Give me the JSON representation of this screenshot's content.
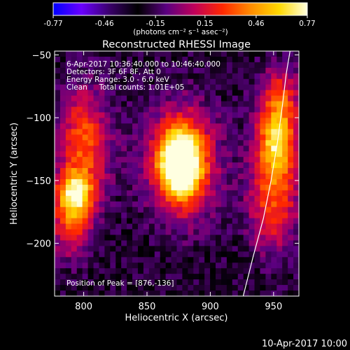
{
  "colorbar": {
    "ticks": [
      "-0.77",
      "-0.46",
      "-0.15",
      "0.15",
      "0.46",
      "0.77"
    ],
    "tick_values": [
      -0.77,
      -0.46,
      -0.15,
      0.15,
      0.46,
      0.77
    ],
    "unit_label": "(photons cm⁻² s⁻¹ asec⁻²)",
    "colors": [
      "#0000ff",
      "#6a00ff",
      "#3a006a",
      "#000000",
      "#5a0080",
      "#c0005a",
      "#ff2800",
      "#ff8c00",
      "#ffd800",
      "#ffffe0"
    ]
  },
  "chart_data": {
    "type": "heatmap",
    "title": "Reconstructed RHESSI Image",
    "xlabel": "Heliocentric X (arcsec)",
    "ylabel": "Heliocentric Y (arcsec)",
    "xlim": [
      777,
      970
    ],
    "ylim": [
      -242,
      -47
    ],
    "xticks": [
      800,
      850,
      900,
      950
    ],
    "yticks": [
      -50,
      -100,
      -150,
      -200
    ],
    "vrange": [
      -0.77,
      0.77
    ],
    "background_value": -0.2,
    "sources": [
      {
        "x": 876,
        "y": -136,
        "value": 0.77,
        "sx": 10,
        "sy": 16
      },
      {
        "x": 878,
        "y": -136,
        "value": 0.5,
        "sx": 18,
        "sy": 30
      },
      {
        "x": 793,
        "y": -160,
        "value": 0.5,
        "sx": 10,
        "sy": 12
      },
      {
        "x": 800,
        "y": -120,
        "value": 0.32,
        "sx": 14,
        "sy": 30
      },
      {
        "x": 790,
        "y": -185,
        "value": 0.25,
        "sx": 12,
        "sy": 18
      },
      {
        "x": 952,
        "y": -120,
        "value": 0.5,
        "sx": 10,
        "sy": 18
      },
      {
        "x": 950,
        "y": -165,
        "value": 0.3,
        "sx": 14,
        "sy": 28
      },
      {
        "x": 955,
        "y": -85,
        "value": 0.25,
        "sx": 12,
        "sy": 18
      },
      {
        "x": 915,
        "y": -125,
        "value": -0.18,
        "sx": 12,
        "sy": 30
      },
      {
        "x": 838,
        "y": -125,
        "value": -0.16,
        "sx": 12,
        "sy": 30
      }
    ],
    "limb": {
      "x": [
        926,
        934,
        942,
        948,
        953,
        957,
        960,
        963
      ],
      "y": [
        -242,
        -210,
        -180,
        -150,
        -120,
        -90,
        -65,
        -47
      ]
    },
    "annotations": [
      "6-Apr-2017 10:36:40.000 to 10:46:40.000",
      "Detectors: 3F 6F 8F, Att 0",
      "Energy Range: 3.0 - 6.0 keV",
      "Clean     Total counts: 1.01E+05"
    ],
    "peak_label": "Position of Peak = [876,-136]",
    "peak": [
      876,
      -136
    ]
  },
  "footer": {
    "timestamp": "10-Apr-2017 10:00"
  }
}
